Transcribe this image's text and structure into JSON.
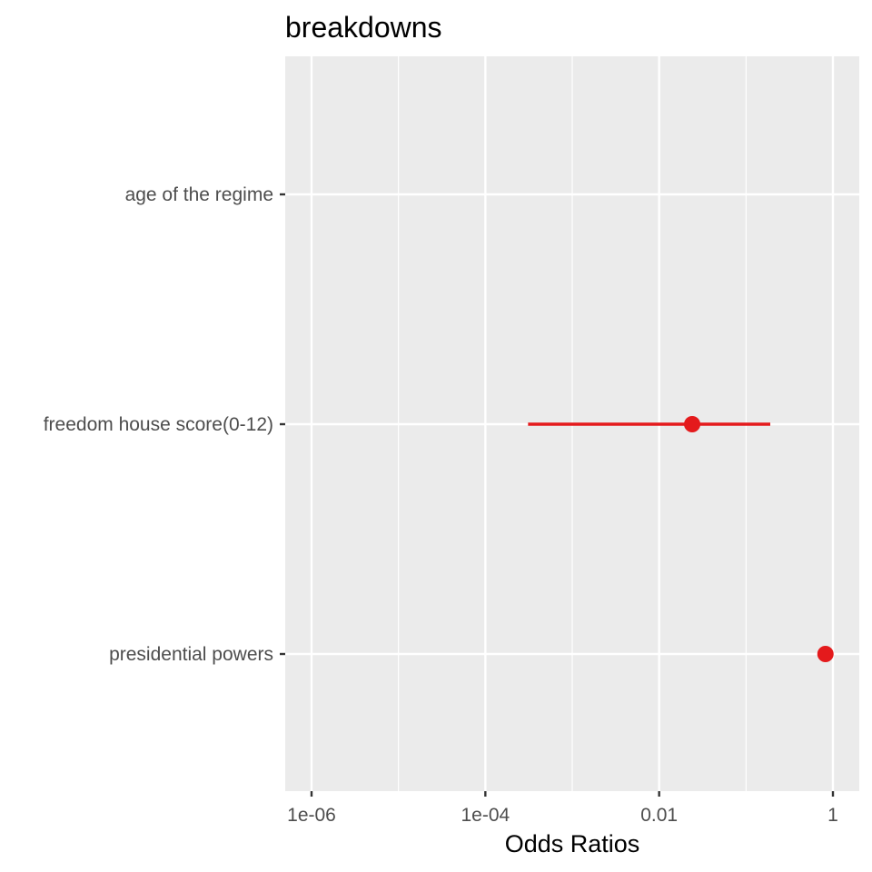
{
  "chart_data": {
    "type": "scatter",
    "title": "breakdowns",
    "xlabel": "Odds Ratios",
    "ylabel": "",
    "x_scale": "log10",
    "xlim": [
      5e-07,
      2
    ],
    "x_ticks": [
      {
        "value": 1e-06,
        "label": "1e-06"
      },
      {
        "value": 0.0001,
        "label": "1e-04"
      },
      {
        "value": 0.01,
        "label": "0.01"
      },
      {
        "value": 1,
        "label": "1"
      }
    ],
    "categories": [
      "age of the regime",
      "freedom house score(0-12)",
      "presidential powers"
    ],
    "points": [
      {
        "category": "age of the regime",
        "estimate": null,
        "ci_low": null,
        "ci_high": null
      },
      {
        "category": "freedom house score(0-12)",
        "estimate": 0.024,
        "ci_low": 0.00031,
        "ci_high": 0.19
      },
      {
        "category": "presidential powers",
        "estimate": 0.82,
        "ci_low": null,
        "ci_high": null
      }
    ],
    "color": "#e41a1c",
    "panel_background": "#ebebeb",
    "grid": true,
    "legend": "none"
  }
}
